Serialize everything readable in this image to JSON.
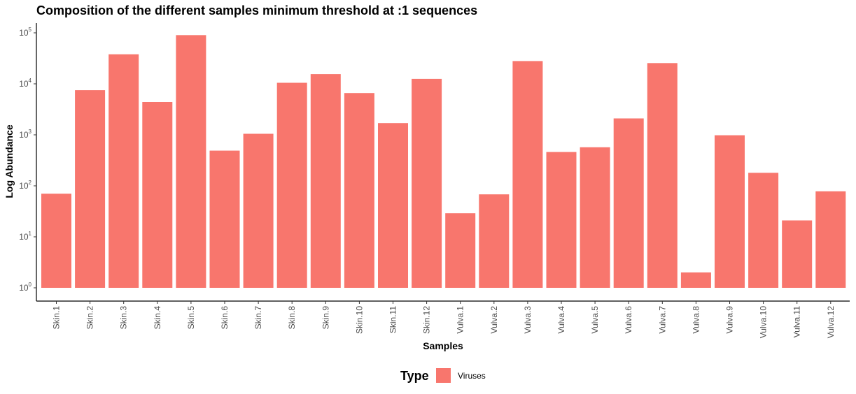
{
  "chart_data": {
    "type": "bar",
    "title": "Composition of the different samples minimum threshold at :1 sequences",
    "xlabel": "Samples",
    "ylabel": "Log Abundance",
    "y_scale": "log10",
    "ylim": [
      1,
      100000
    ],
    "y_ticks": [
      {
        "base": "10",
        "exp": "0",
        "value": 1
      },
      {
        "base": "10",
        "exp": "1",
        "value": 10
      },
      {
        "base": "10",
        "exp": "2",
        "value": 100
      },
      {
        "base": "10",
        "exp": "3",
        "value": 1000
      },
      {
        "base": "10",
        "exp": "4",
        "value": 10000
      },
      {
        "base": "10",
        "exp": "5",
        "value": 100000
      }
    ],
    "categories": [
      "Skin.1",
      "Skin.2",
      "Skin.3",
      "Skin.4",
      "Skin.5",
      "Skin.6",
      "Skin.7",
      "Skin.8",
      "Skin.9",
      "Skin.10",
      "Skin.11",
      "Skin.12",
      "Vulva.1",
      "Vulva.2",
      "Vulva.3",
      "Vulva.4",
      "Vulva.5",
      "Vulva.6",
      "Vulva.7",
      "Vulva.8",
      "Vulva.9",
      "Vulva.10",
      "Vulva.11",
      "Vulva.12"
    ],
    "series": [
      {
        "name": "Viruses",
        "color": "#F8766D",
        "values": [
          70,
          7500,
          38000,
          4400,
          90000,
          490,
          1050,
          10500,
          15500,
          6600,
          1700,
          12500,
          29,
          68,
          28000,
          460,
          570,
          2100,
          25500,
          2,
          980,
          180,
          21,
          78
        ]
      }
    ],
    "legend": {
      "title": "Type",
      "position": "bottom",
      "entries": [
        {
          "label": "Viruses",
          "color": "#F8766D"
        }
      ]
    },
    "grid": false
  }
}
